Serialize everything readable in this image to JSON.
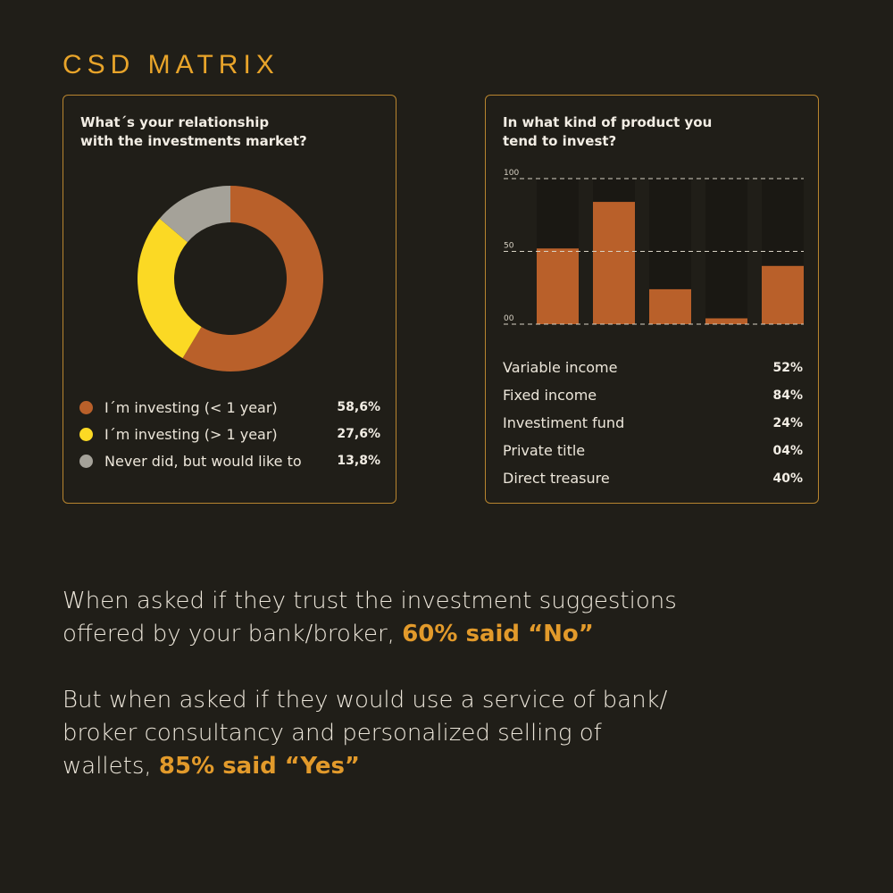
{
  "page": {
    "heading": "CSD MATRIX"
  },
  "relationship_card": {
    "title_line1": "What´s your relationship",
    "title_line2": "with the investments market?"
  },
  "product_card": {
    "title_line1": "In what kind of product you",
    "title_line2": "tend to invest?"
  },
  "chart_data": [
    {
      "type": "pie",
      "donut": true,
      "categories": [
        "I´m investing (< 1 year)",
        "I´m investing (> 1 year)",
        "Never did, but would like to"
      ],
      "values": [
        58.6,
        27.6,
        13.8
      ],
      "value_labels": [
        "58,6%",
        "27,6%",
        "13,8%"
      ],
      "colors": [
        "#b9602a",
        "#fbd924",
        "#a5a299"
      ],
      "legend": "bottom"
    },
    {
      "type": "bar",
      "categories": [
        "Variable income",
        "Fixed income",
        "Investiment fund",
        "Private title",
        "Direct treasure"
      ],
      "values": [
        52,
        84,
        24,
        4,
        40
      ],
      "value_labels": [
        "52%",
        "84%",
        "24%",
        "04%",
        "40%"
      ],
      "ylim": [
        0,
        100
      ],
      "ticks": [
        {
          "value": 100,
          "label": "100"
        },
        {
          "value": 50,
          "label": "50"
        },
        {
          "value": 0,
          "label": "00"
        }
      ],
      "grid": true,
      "bar_color": "#b9602a",
      "track_color": "#1a1813"
    }
  ],
  "statements": [
    {
      "line1": "When asked if they trust the investment suggestions",
      "line2_plain": "offered by your bank/broker, ",
      "highlight": "60% said “No”"
    },
    {
      "line1": "But when asked if they would use a service of bank/",
      "line2": "broker consultancy and personalized selling of",
      "line3_plain": "wallets, ",
      "highlight": "85% said “Yes”"
    }
  ]
}
